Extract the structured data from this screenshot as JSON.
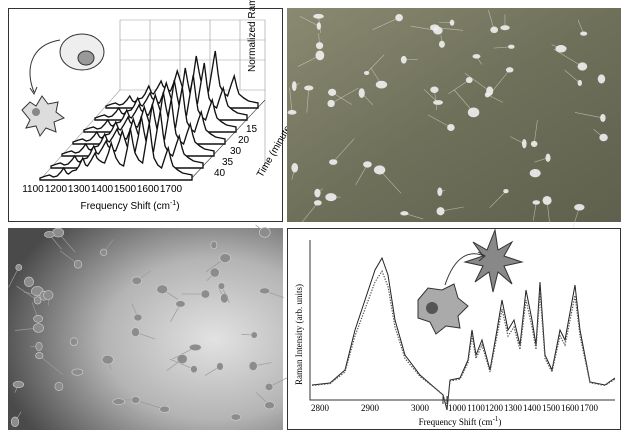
{
  "waterfall": {
    "x_ticks": [
      "1100",
      "1200",
      "1300",
      "1400",
      "1500",
      "1600",
      "1700"
    ],
    "x_label": "Frequency Shift (cm",
    "x_label_unit": "-1",
    "x_label_end": ")",
    "z_ticks": [
      "15",
      "20",
      "30",
      "35",
      "40"
    ],
    "z_label": "Time (minutes)",
    "y_label": "Normalized Raman Intensity (a.u.)"
  },
  "spectrum": {
    "y_label": "Raman Intensity (arb. units)",
    "x_ticks": [
      "2800",
      "2900",
      "3000",
      "1000",
      "1100",
      "1200",
      "1300",
      "1400",
      "1500",
      "1600",
      "1700"
    ],
    "x_label": "Frequency Shift (cm",
    "x_label_unit": "-1",
    "x_label_end": ")"
  }
}
